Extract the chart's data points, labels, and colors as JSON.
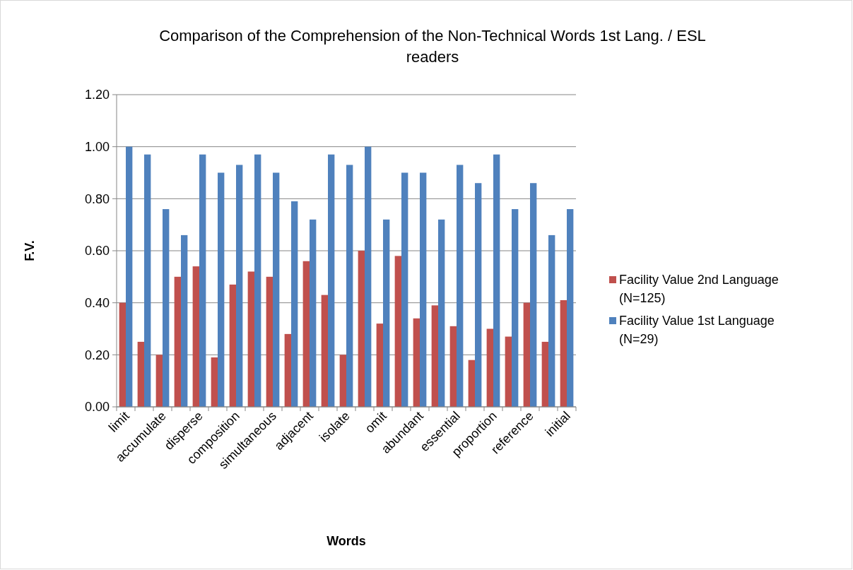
{
  "chart_data": {
    "type": "bar",
    "title": "Comparison of the Comprehension of the Non-Technical Words 1st Lang. / ESL readers",
    "xlabel": "Words",
    "ylabel": "F.V.",
    "categories": [
      "limit",
      null,
      "accumulate",
      null,
      "disperse",
      null,
      "composition",
      null,
      "simultaneous",
      null,
      "adjacent",
      null,
      "isolate",
      null,
      "omit",
      null,
      "abundant",
      null,
      "essential",
      null,
      "proportion",
      null,
      "reference",
      null,
      "initial"
    ],
    "series": [
      {
        "name": "Facility Value 2nd Language (N=125)",
        "color": "#c0504d",
        "values": [
          0.4,
          0.25,
          0.2,
          0.5,
          0.54,
          0.19,
          0.47,
          0.52,
          0.5,
          0.28,
          0.56,
          0.43,
          0.2,
          0.6,
          0.32,
          0.58,
          0.34,
          0.39,
          0.31,
          0.18,
          0.3,
          0.27,
          0.4,
          0.25,
          0.41
        ]
      },
      {
        "name": "Facility Value 1st Language (N=29)",
        "color": "#4f81bd",
        "values": [
          1.0,
          0.97,
          0.76,
          0.66,
          0.97,
          0.9,
          0.93,
          0.97,
          0.9,
          0.79,
          0.72,
          0.97,
          0.93,
          1.0,
          0.72,
          0.9,
          0.9,
          0.72,
          0.93,
          0.86,
          0.97,
          0.76,
          0.86,
          0.66,
          0.76
        ]
      }
    ],
    "ylim": [
      0,
      1.2
    ],
    "yticks": [
      {
        "value": 0,
        "label": "0.00"
      },
      {
        "value": 0.2,
        "label": "0.20"
      },
      {
        "value": 0.4,
        "label": "0.40"
      },
      {
        "value": 0.6,
        "label": "0.60"
      },
      {
        "value": 0.8,
        "label": "0.80"
      },
      {
        "value": 1.0,
        "label": "1.00"
      },
      {
        "value": 1.2,
        "label": "1.20"
      }
    ],
    "grid": "y",
    "legend": "right"
  }
}
